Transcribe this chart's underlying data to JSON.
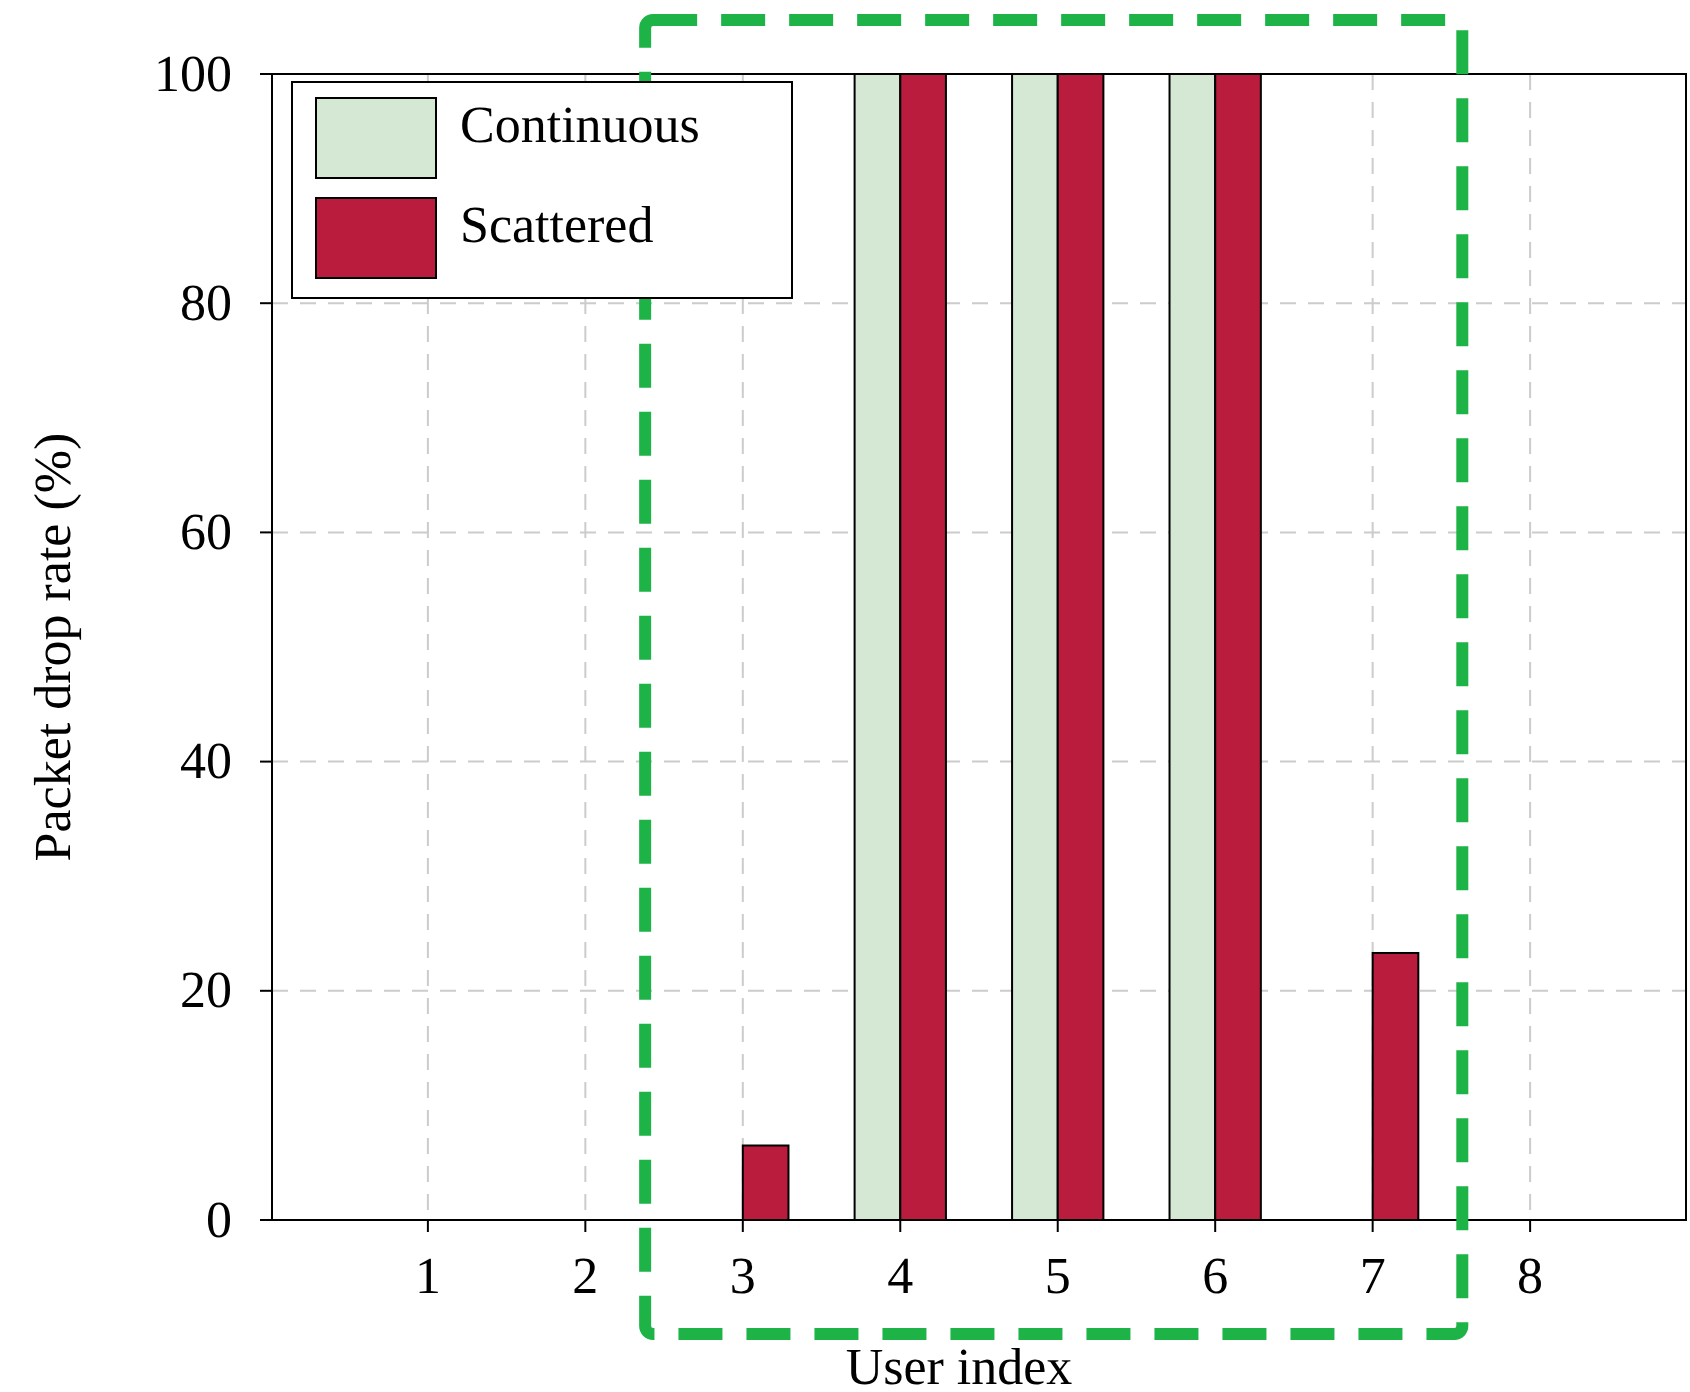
{
  "chart_data": {
    "type": "bar",
    "xlabel": "User index",
    "ylabel": "Packet drop rate (%)",
    "categories": [
      "1",
      "2",
      "3",
      "4",
      "5",
      "6",
      "7",
      "8"
    ],
    "series": [
      {
        "name": "Continuous",
        "color": "#d5e8d4",
        "values": [
          0,
          0,
          0,
          100,
          100,
          100,
          0,
          0
        ]
      },
      {
        "name": "Scattered",
        "color": "#b91c3c",
        "values": [
          0,
          0,
          6.5,
          100,
          100,
          100,
          23.3,
          0
        ]
      }
    ],
    "ylim": [
      0,
      100
    ],
    "yticks": [
      0,
      20,
      40,
      60,
      80,
      100
    ],
    "grid": true,
    "legend": "top left"
  }
}
